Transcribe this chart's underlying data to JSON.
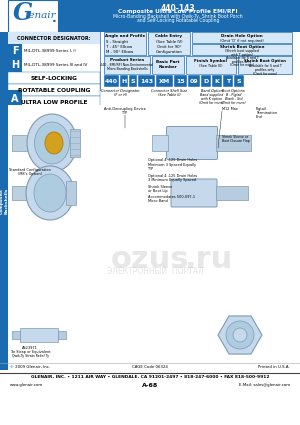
{
  "title_number": "440-143",
  "title_line1": "Composite Ultra Low Profile EMI/RFI",
  "title_line2": "Micro-Banding Backshell with Qwik-Ty, Shrink Boot Porch",
  "title_line3": "and Self-Locking Rotatable Coupling",
  "side_tab_text": "Composite\nBackshells",
  "logo_g": "G",
  "logo_rest": "lenair.",
  "connector_designator_label": "CONNECTOR DESIGNATOR:",
  "designator_F": "F",
  "designator_A": "A",
  "designator_H": "H",
  "series_F_text": "MIL-DTL-38999 Series I, II",
  "series_H_text": "MIL-DTL-38999 Series III and IV",
  "self_locking": "SELF-LOCKING",
  "rotatable": "ROTATABLE COUPLING",
  "ultra": "ULTRA LOW PROFILE",
  "part_number_boxes": [
    "440",
    "H",
    "S",
    "143",
    "XM",
    "15",
    "09",
    "D",
    "K",
    "T",
    "S"
  ],
  "angle_profile_label": "Angle and Profile",
  "cable_entry_label": "Cable Entry",
  "drain_hole_label": "Drain Hole Option",
  "drain_hole_text": "(Omit 'D' if not required)",
  "shrink_boot_label": "Shrink Boot Option",
  "shrink_boot_lines": [
    "(Shrink boot supplied",
    "with T option)",
    "Available for S and T",
    "profiles only",
    "(Omit for none)"
  ],
  "product_series_label": "Product Series",
  "product_series_lines": [
    "440 - EMI/RFI Non-Environmental",
    "Micro-Banding Backshells"
  ],
  "basic_part_label": "Basic Part\nNumber",
  "finish_symbol_label": "Finish Symbol",
  "finish_symbol_text": "(See Table III)",
  "footer_company": "GLENAIR, INC. • 1211 AIR WAY • GLENDALE, CA 91201-2497 • 818-247-6000 • FAX 818-500-9912",
  "footer_web": "www.glenair.com",
  "footer_page": "A-68",
  "footer_email": "E-Mail: sales@glenair.com",
  "footer_copyright": "© 2009 Glenair, Inc.",
  "footer_cage": "CAGE Code 06324",
  "footer_printed": "Printed in U.S.A.",
  "blue": "#1B6BB0",
  "light_blue": "#D6E8F7",
  "mid_blue": "#4A90C4",
  "white": "#FFFFFF",
  "black": "#000000",
  "gray_bg": "#F2F2F2",
  "diagram_bg": "#FFFFFF"
}
